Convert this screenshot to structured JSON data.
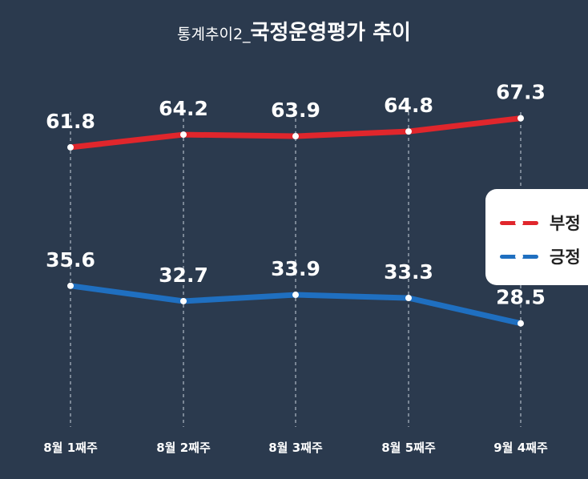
{
  "title": {
    "prefix": "통계추이2_",
    "main": "국정운영평가 추이"
  },
  "chart_data": {
    "type": "line",
    "title": "통계추이2_국정운영평가 추이",
    "categories": [
      "8월 1째주",
      "8월 2째주",
      "8월 3째주",
      "8월 5째주",
      "9월 4째주"
    ],
    "series": [
      {
        "name": "부정",
        "color": "#e0262c",
        "values": [
          61.8,
          64.2,
          63.9,
          64.8,
          67.3
        ]
      },
      {
        "name": "긍정",
        "color": "#1f6fc0",
        "values": [
          35.6,
          32.7,
          33.9,
          33.3,
          28.5
        ]
      }
    ],
    "ylim": [
      0,
      80
    ],
    "grid": "vertical dashed",
    "legend_position": "right"
  },
  "legend": {
    "items": [
      {
        "label": "부정",
        "color": "#e0262c"
      },
      {
        "label": "긍정",
        "color": "#1f6fc0"
      }
    ]
  }
}
